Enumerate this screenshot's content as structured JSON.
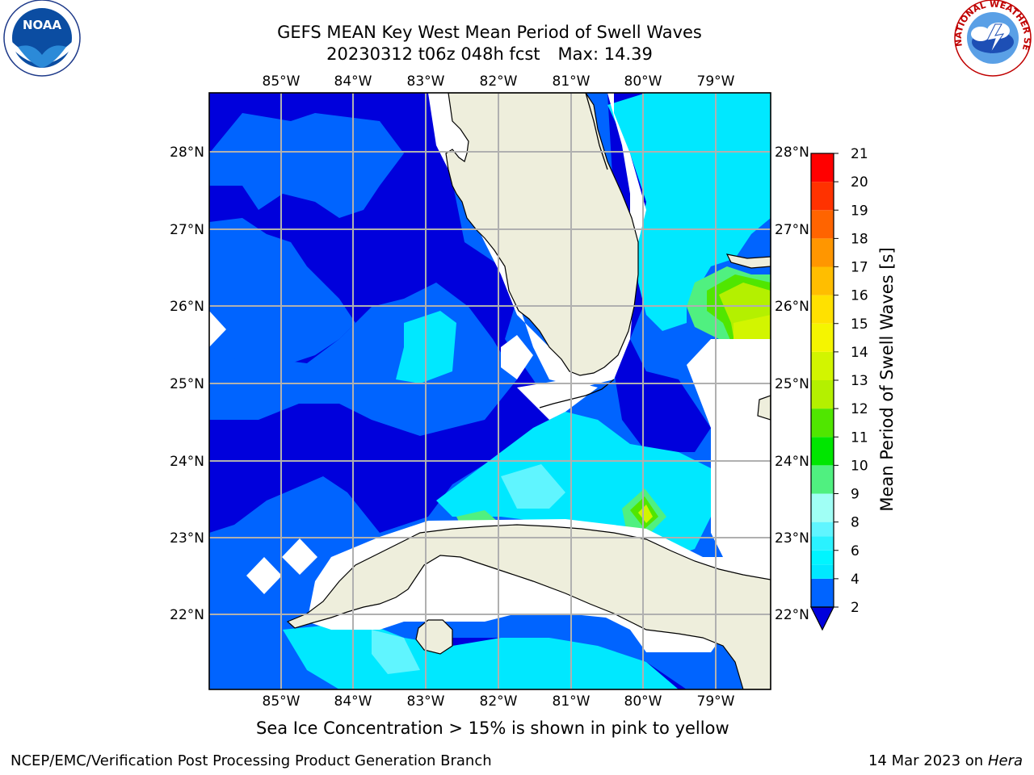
{
  "title": {
    "line1": "GEFS MEAN Key West Mean Period of Swell Waves",
    "line2_left": "20230312 t06z 048h fcst",
    "line2_right": "Max: 14.39"
  },
  "map": {
    "lon_labels": [
      "85°W",
      "84°W",
      "83°W",
      "82°W",
      "81°W",
      "80°W",
      "79°W"
    ],
    "lat_labels": [
      "28°N",
      "27°N",
      "26°N",
      "25°N",
      "24°N",
      "23°N",
      "22°N"
    ],
    "colors": {
      "land": "#eeeedc",
      "grid": "#b0b0b0",
      "coast": "#000000",
      "no_data": "#ffffff"
    }
  },
  "colorbar": {
    "label": "Mean Period of Swell Waves [s]",
    "tick_labels": [
      "2",
      "4",
      "6",
      "8",
      "9",
      "10",
      "11",
      "12",
      "13",
      "14",
      "15",
      "16",
      "17",
      "18",
      "19",
      "20",
      "21"
    ],
    "bins": [
      {
        "from": 2,
        "to": 4,
        "color": "#0064ff"
      },
      {
        "from": 4,
        "to": 5,
        "color": "#00e8ff"
      },
      {
        "from": 5,
        "to": 6,
        "color": "#00f5ff"
      },
      {
        "from": 6,
        "to": 7,
        "color": "#2af2ff"
      },
      {
        "from": 7,
        "to": 8,
        "color": "#60f5ff"
      },
      {
        "from": 8,
        "to": 9,
        "color": "#a0fff5"
      },
      {
        "from": 9,
        "to": 10,
        "color": "#50f080"
      },
      {
        "from": 10,
        "to": 11,
        "color": "#00e600"
      },
      {
        "from": 11,
        "to": 12,
        "color": "#50e600"
      },
      {
        "from": 12,
        "to": 13,
        "color": "#b4f000"
      },
      {
        "from": 13,
        "to": 14,
        "color": "#d2f500"
      },
      {
        "from": 14,
        "to": 15,
        "color": "#f5f500"
      },
      {
        "from": 15,
        "to": 16,
        "color": "#ffe100"
      },
      {
        "from": 16,
        "to": 17,
        "color": "#ffbe00"
      },
      {
        "from": 17,
        "to": 18,
        "color": "#ff9600"
      },
      {
        "from": 18,
        "to": 19,
        "color": "#ff6400"
      },
      {
        "from": 19,
        "to": 20,
        "color": "#ff3200"
      },
      {
        "from": 20,
        "to": 21,
        "color": "#ff0000"
      }
    ],
    "under_color": "#0000dc"
  },
  "logos": {
    "left_text": "NOAA",
    "right_text": "NATIONAL WEATHER SERVICE"
  },
  "footer": {
    "note": "Sea Ice Concentration > 15% is shown in pink to yellow",
    "left": "NCEP/EMC/Verification Post Processing Product Generation Branch",
    "right_date": "14 Mar 2023 on",
    "right_host": "Hera"
  }
}
